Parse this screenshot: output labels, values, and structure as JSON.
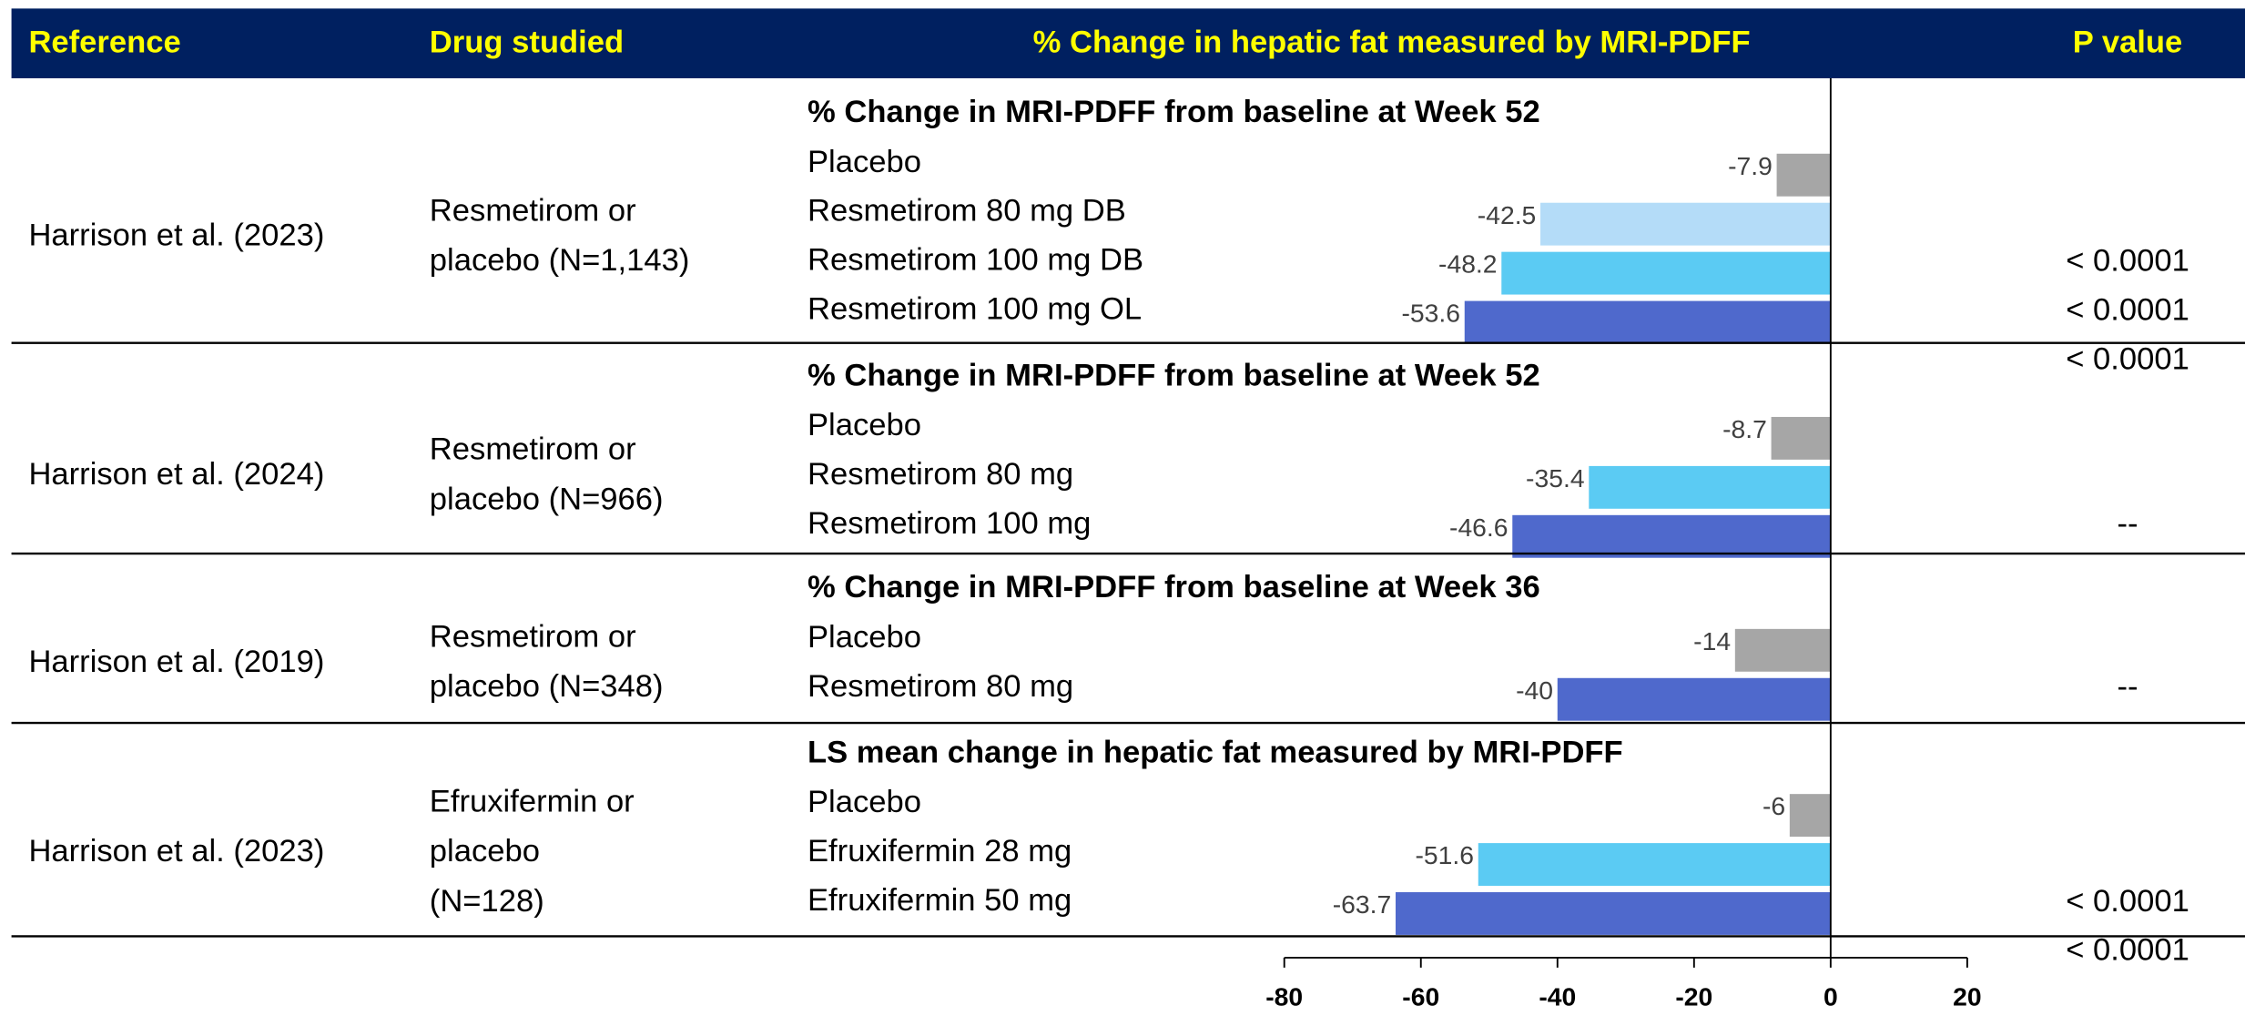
{
  "chart_data": {
    "type": "bar",
    "columns": [
      "Reference",
      "Drug studied",
      "% Change in hepatic fat measured by MRI-PDFF",
      "P value"
    ],
    "groups": [
      {
        "reference": "Harrison et al. (2023)",
        "drug": [
          "Resmetirom or",
          "placebo (N=1,143)"
        ],
        "subtitle": "% Change in MRI-PDFF from baseline at Week 52",
        "categories": [
          "Placebo",
          "Resmetirom 80 mg DB",
          "Resmetirom 100 mg DB",
          "Resmetirom 100 mg OL"
        ],
        "values": [
          -7.9,
          -42.5,
          -48.2,
          -53.6
        ],
        "colors": [
          "#a6a6a6",
          "#b4dcf8",
          "#5bcbf3",
          "#4f69cc"
        ],
        "p_values": [
          null,
          "< 0.0001",
          "< 0.0001",
          "< 0.0001"
        ]
      },
      {
        "reference": "Harrison et al. (2024)",
        "drug": [
          "Resmetirom or",
          "placebo (N=966)"
        ],
        "subtitle": "% Change in MRI-PDFF from baseline at Week 52",
        "categories": [
          "Placebo",
          "Resmetirom 80 mg",
          "Resmetirom 100 mg"
        ],
        "values": [
          -8.7,
          -35.4,
          -46.6
        ],
        "colors": [
          "#a6a6a6",
          "#5bcbf3",
          "#4f69cc"
        ],
        "p_values": [
          null,
          "--",
          null
        ]
      },
      {
        "reference": "Harrison et al. (2019)",
        "drug": [
          "Resmetirom or",
          "placebo (N=348)"
        ],
        "subtitle": "% Change in MRI-PDFF from baseline at Week 36",
        "categories": [
          "Placebo",
          "Resmetirom 80 mg"
        ],
        "values": [
          -14,
          -40
        ],
        "colors": [
          "#a6a6a6",
          "#4f69cc"
        ],
        "p_values": [
          "--",
          null
        ]
      },
      {
        "reference": "Harrison et al. (2023)",
        "drug": [
          "Efruxifermin or",
          "placebo",
          "(N=128)"
        ],
        "subtitle": "LS mean change in hepatic fat measured by MRI-PDFF",
        "categories": [
          "Placebo",
          "Efruxifermin 28 mg",
          "Efruxifermin 50 mg"
        ],
        "values": [
          -6,
          -51.6,
          -63.7
        ],
        "colors": [
          "#a6a6a6",
          "#5bcbf3",
          "#4f69cc"
        ],
        "p_values": [
          null,
          "< 0.0001",
          "< 0.0001"
        ]
      }
    ],
    "xlim": [
      -80,
      20
    ],
    "xticks": [
      -80,
      -60,
      -40,
      -20,
      0,
      20
    ]
  }
}
